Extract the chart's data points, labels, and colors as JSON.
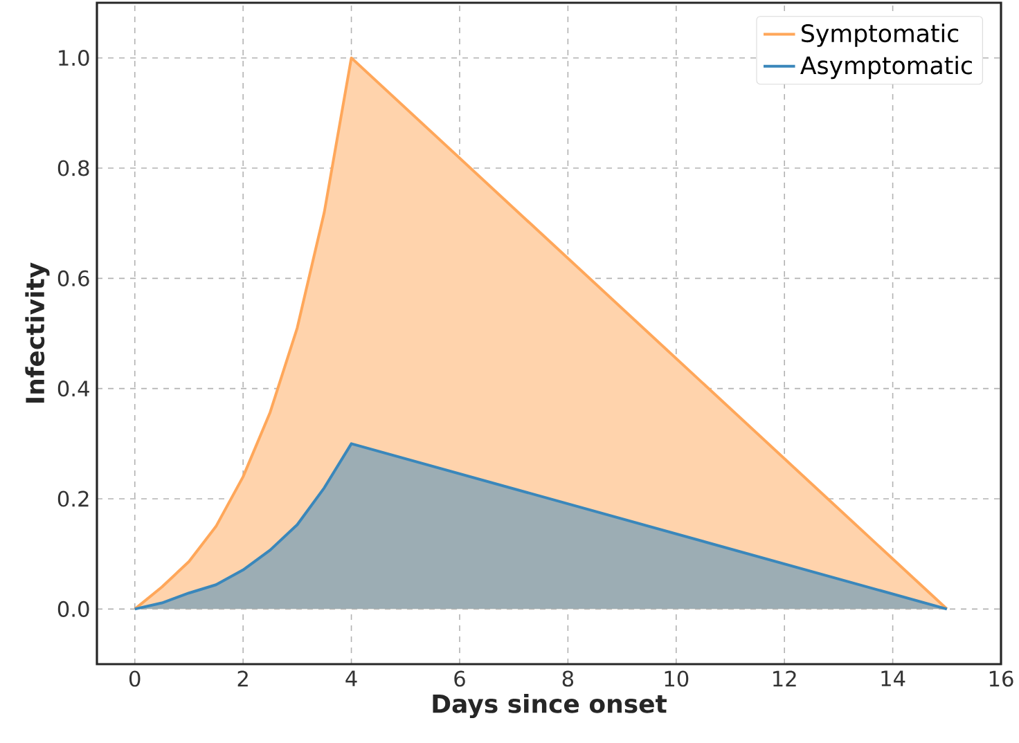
{
  "chart_data": {
    "type": "area",
    "xlabel": "Days since onset",
    "ylabel": "Infectivity",
    "series": [
      {
        "name": "Symptomatic",
        "color": "#ffa75a",
        "x": [
          0,
          0.5,
          1,
          1.5,
          2,
          2.5,
          3,
          3.5,
          4,
          15
        ],
        "values": [
          0,
          0.04,
          0.086,
          0.15,
          0.24,
          0.357,
          0.51,
          0.72,
          1.0,
          0
        ]
      },
      {
        "name": "Asymptomatic",
        "color": "#3a87bb",
        "x": [
          0,
          0.5,
          1,
          1.5,
          2,
          2.5,
          3,
          3.5,
          4,
          15
        ],
        "values": [
          0,
          0.011,
          0.029,
          0.044,
          0.071,
          0.107,
          0.153,
          0.22,
          0.3,
          0
        ]
      }
    ],
    "xlim": [
      -0.7,
      16
    ],
    "ylim": [
      -0.1,
      1.1
    ],
    "xticks": [
      0,
      2,
      4,
      6,
      8,
      10,
      12,
      14,
      16
    ],
    "yticks": [
      {
        "value": 0,
        "label": "0.0"
      },
      {
        "value": 0.2,
        "label": "0.2"
      },
      {
        "value": 0.4,
        "label": "0.4"
      },
      {
        "value": 0.6,
        "label": "0.6"
      },
      {
        "value": 0.8,
        "label": "0.8"
      },
      {
        "value": 1.0,
        "label": "1.0"
      }
    ],
    "grid": true,
    "legend": "top right"
  }
}
